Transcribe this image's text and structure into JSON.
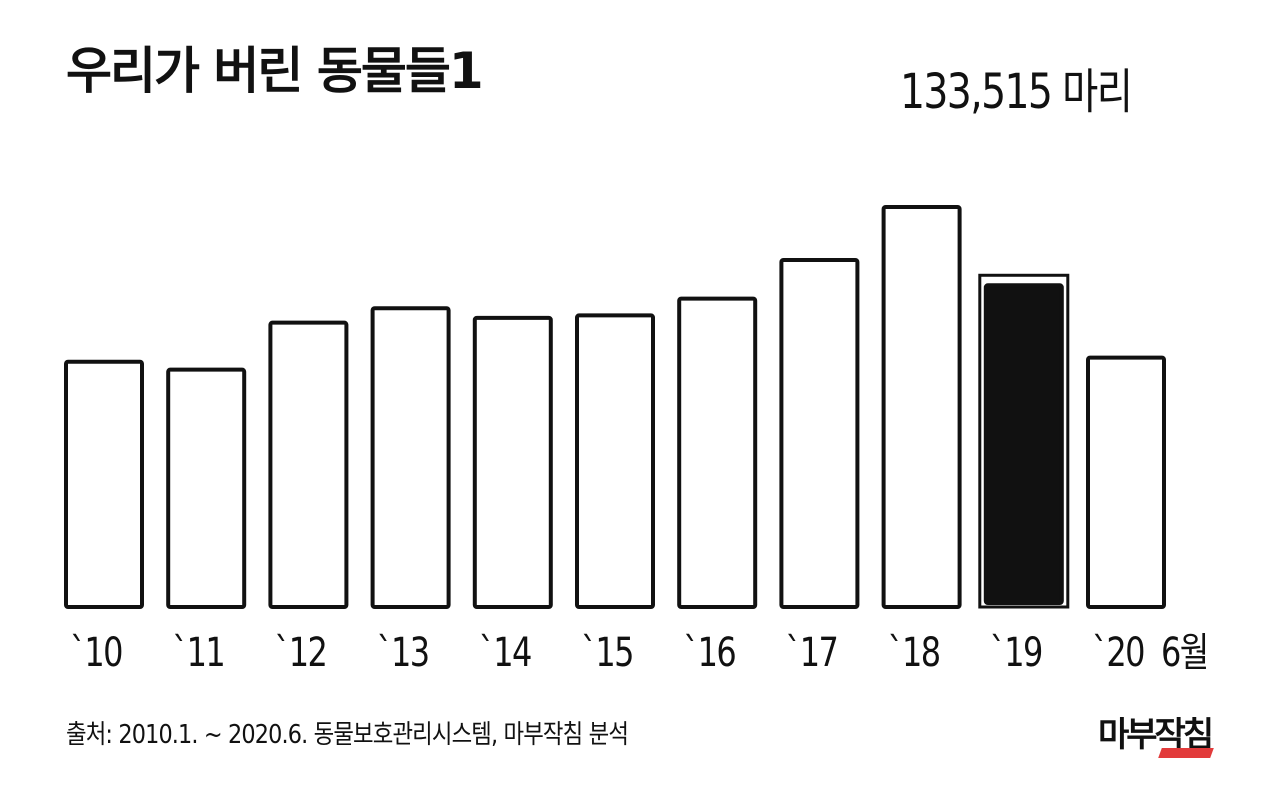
{
  "title": "우리가 버린 동물들1",
  "highlight_label": "133,515 마리",
  "source": "출처: 2010.1. ~ 2020.6. 동물보호관리시스템, 마부작침 분석",
  "brand": "마부작침",
  "colors": {
    "bar_fill": "#ffffff",
    "bar_highlight": "#111111",
    "stroke": "#111111",
    "brand_accent": "#e23b3b"
  },
  "chart_data": {
    "type": "bar",
    "title": "우리가 버린 동물들1",
    "categories": [
      "`10",
      "`11",
      "`12",
      "`13",
      "`14",
      "`15",
      "`16",
      "`17",
      "`18",
      "`19",
      "`20  6월"
    ],
    "values": [
      101800,
      98500,
      118000,
      124000,
      120000,
      121000,
      128000,
      144000,
      166000,
      133515,
      103500
    ],
    "highlight_index": 9,
    "annotations": [
      {
        "category": "`19",
        "text": "133,515 마리"
      }
    ],
    "xlabel": "",
    "ylabel": "",
    "grid": false,
    "legend": "none"
  }
}
